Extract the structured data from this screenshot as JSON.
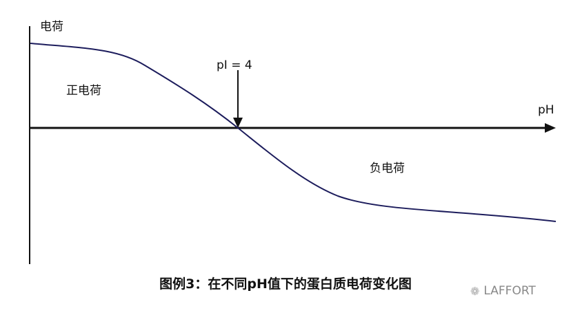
{
  "diagram": {
    "y_axis_label": "电荷",
    "x_axis_label": "pH",
    "pi_label": "pI = 4",
    "positive_region_label": "正电荷",
    "negative_region_label": "负电荷",
    "caption": "图例3：在不同pH值下的蛋白质电荷变化图",
    "curve_color": "#1c1c5c",
    "axis_color": "#111111"
  },
  "watermark": {
    "icon": "wechat-icon",
    "text": "LAFFORT"
  }
}
